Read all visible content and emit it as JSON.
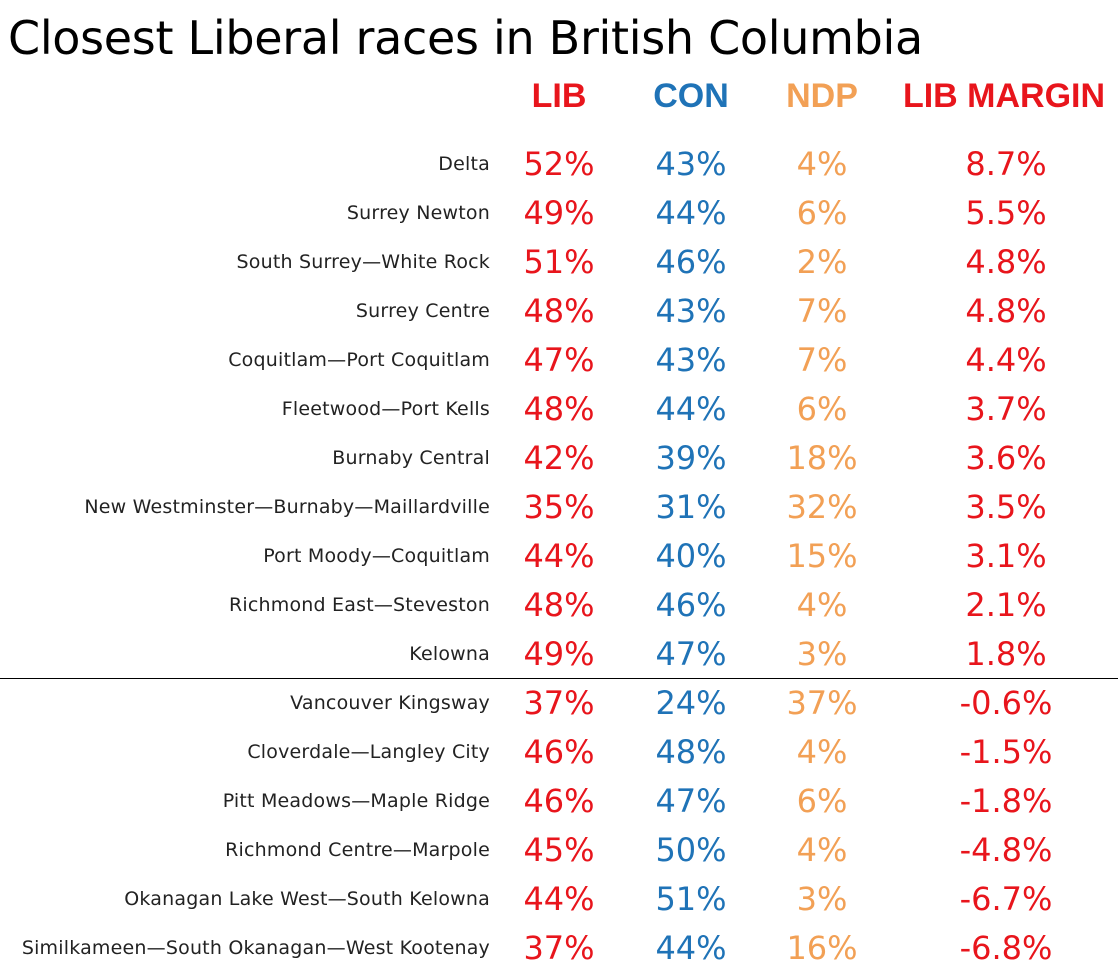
{
  "title": "Closest Liberal races in British Columbia",
  "colors": {
    "lib": "#e8151c",
    "con": "#1f73b7",
    "ndp": "#f2a055",
    "margin": "#e8151c"
  },
  "chart_data": {
    "type": "table",
    "title": "Closest Liberal races in British Columbia",
    "columns": [
      "LIB",
      "CON",
      "NDP",
      "LIB MARGIN"
    ],
    "divider_after_row": 11,
    "rows": [
      {
        "riding": "Delta",
        "lib": "52%",
        "con": "43%",
        "ndp": "4%",
        "margin": "8.7%"
      },
      {
        "riding": "Surrey Newton",
        "lib": "49%",
        "con": "44%",
        "ndp": "6%",
        "margin": "5.5%"
      },
      {
        "riding": "South Surrey—White Rock",
        "lib": "51%",
        "con": "46%",
        "ndp": "2%",
        "margin": "4.8%"
      },
      {
        "riding": "Surrey Centre",
        "lib": "48%",
        "con": "43%",
        "ndp": "7%",
        "margin": "4.8%"
      },
      {
        "riding": "Coquitlam—Port Coquitlam",
        "lib": "47%",
        "con": "43%",
        "ndp": "7%",
        "margin": "4.4%"
      },
      {
        "riding": "Fleetwood—Port Kells",
        "lib": "48%",
        "con": "44%",
        "ndp": "6%",
        "margin": "3.7%"
      },
      {
        "riding": "Burnaby Central",
        "lib": "42%",
        "con": "39%",
        "ndp": "18%",
        "margin": "3.6%"
      },
      {
        "riding": "New Westminster—Burnaby—Maillardville",
        "lib": "35%",
        "con": "31%",
        "ndp": "32%",
        "margin": "3.5%"
      },
      {
        "riding": "Port Moody—Coquitlam",
        "lib": "44%",
        "con": "40%",
        "ndp": "15%",
        "margin": "3.1%"
      },
      {
        "riding": "Richmond East—Steveston",
        "lib": "48%",
        "con": "46%",
        "ndp": "4%",
        "margin": "2.1%"
      },
      {
        "riding": "Kelowna",
        "lib": "49%",
        "con": "47%",
        "ndp": "3%",
        "margin": "1.8%"
      },
      {
        "riding": "Vancouver Kingsway",
        "lib": "37%",
        "con": "24%",
        "ndp": "37%",
        "margin": "-0.6%"
      },
      {
        "riding": "Cloverdale—Langley City",
        "lib": "46%",
        "con": "48%",
        "ndp": "4%",
        "margin": "-1.5%"
      },
      {
        "riding": "Pitt Meadows—Maple Ridge",
        "lib": "46%",
        "con": "47%",
        "ndp": "6%",
        "margin": "-1.8%"
      },
      {
        "riding": "Richmond Centre—Marpole",
        "lib": "45%",
        "con": "50%",
        "ndp": "4%",
        "margin": "-4.8%"
      },
      {
        "riding": "Okanagan Lake West—South Kelowna",
        "lib": "44%",
        "con": "51%",
        "ndp": "3%",
        "margin": "-6.7%"
      },
      {
        "riding": "Similkameen—South Okanagan—West Kootenay",
        "lib": "37%",
        "con": "44%",
        "ndp": "16%",
        "margin": "-6.8%"
      }
    ]
  }
}
